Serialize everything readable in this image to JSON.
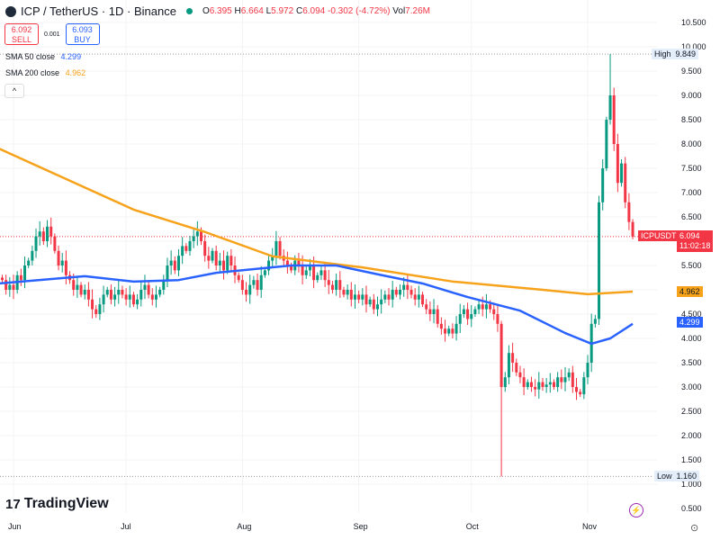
{
  "header": {
    "symbol": "ICP / TetherUS · 1D · Binance",
    "o_label": "O",
    "o": "6.395",
    "h_label": "H",
    "h": "6.664",
    "l_label": "L",
    "l": "5.972",
    "c_label": "C",
    "c": "6.094",
    "change": "-0.302 (-4.72%)",
    "vol_label": "Vol",
    "vol": "7.26M"
  },
  "trade": {
    "sell_price": "6.092",
    "sell_label": "SELL",
    "spread": "0.001",
    "buy_price": "6.093",
    "buy_label": "BUY"
  },
  "indicators": [
    {
      "label": "SMA 50 close",
      "value": "4.299",
      "color": "#2962ff"
    },
    {
      "label": "SMA 200 close",
      "value": "4.962",
      "color": "#f7a21b"
    }
  ],
  "collapse_icon": "chevron-up-icon",
  "branding": "TradingView",
  "tags": {
    "high_label": "High",
    "high": "9.849",
    "low_label": "Low",
    "low": "1.160",
    "symbol_tag": "ICPUSDT",
    "last": "6.094",
    "countdown": "11:02:18",
    "sma50": "4.299",
    "sma200": "4.962"
  },
  "colors": {
    "up": "#089981",
    "down": "#f23645",
    "sma50": "#2962ff",
    "sma200": "#f7a21b"
  },
  "chart_data": {
    "type": "candlestick",
    "y_ticks": [
      "10.500",
      "10.000",
      "9.500",
      "9.000",
      "8.500",
      "8.000",
      "7.500",
      "7.000",
      "6.500",
      "5.500",
      "4.500",
      "4.000",
      "3.500",
      "3.000",
      "2.500",
      "2.000",
      "1.500",
      "1.000",
      "0.500"
    ],
    "ylim": [
      0.5,
      10.5
    ],
    "x_ticks": [
      {
        "label": "Jun",
        "date": "2024-06-01"
      },
      {
        "label": "Jul",
        "date": "2024-07-01"
      },
      {
        "label": "Aug",
        "date": "2024-08-01"
      },
      {
        "label": "Sep",
        "date": "2024-09-01"
      },
      {
        "label": "Oct",
        "date": "2024-10-01"
      },
      {
        "label": "Nov",
        "date": "2024-11-01"
      }
    ],
    "candles_from": "2024-05-29",
    "closes": [
      5.2,
      5.0,
      5.1,
      5.0,
      5.3,
      5.2,
      5.5,
      5.6,
      5.8,
      6.1,
      6.2,
      6.0,
      6.3,
      6.1,
      5.8,
      5.5,
      5.6,
      5.3,
      5.2,
      5.0,
      5.1,
      4.9,
      5.0,
      4.8,
      4.6,
      4.5,
      4.7,
      4.9,
      5.0,
      4.8,
      4.9,
      5.0,
      4.9,
      4.8,
      4.9,
      4.7,
      4.8,
      5.0,
      5.1,
      4.9,
      4.8,
      4.9,
      5.0,
      5.2,
      5.5,
      5.6,
      5.4,
      5.7,
      5.9,
      5.8,
      6.0,
      6.1,
      6.2,
      6.0,
      5.7,
      5.6,
      5.8,
      5.5,
      5.6,
      5.4,
      5.7,
      5.5,
      5.3,
      5.2,
      5.0,
      4.9,
      5.1,
      5.2,
      5.0,
      5.3,
      5.4,
      5.6,
      5.7,
      6.0,
      5.7,
      5.6,
      5.5,
      5.4,
      5.6,
      5.5,
      5.3,
      5.4,
      5.5,
      5.2,
      5.3,
      5.4,
      5.2,
      5.1,
      5.0,
      5.2,
      5.0,
      4.9,
      5.0,
      4.8,
      4.9,
      4.8,
      4.9,
      4.7,
      4.8,
      4.6,
      4.7,
      4.8,
      4.9,
      4.8,
      5.0,
      4.9,
      5.0,
      5.1,
      5.0,
      4.9,
      4.8,
      4.9,
      4.7,
      4.6,
      4.5,
      4.6,
      4.3,
      4.2,
      4.1,
      4.2,
      4.1,
      4.3,
      4.5,
      4.6,
      4.4,
      4.5,
      4.6,
      4.7,
      4.6,
      4.7,
      4.6,
      4.5,
      4.3,
      3.0,
      3.2,
      3.7,
      3.5,
      3.3,
      3.2,
      3.0,
      3.1,
      3.0,
      2.95,
      3.1,
      3.0,
      3.05,
      3.1,
      3.0,
      3.2,
      3.1,
      3.2,
      3.3,
      3.0,
      2.9,
      2.85,
      3.2,
      3.5,
      4.3,
      4.4,
      6.8,
      7.5,
      8.5,
      9.0,
      8.0,
      7.2,
      7.6,
      6.8,
      6.395,
      6.094
    ],
    "extreme_low": {
      "date": "2024-10-09",
      "value": 1.16
    },
    "extreme_high": {
      "date": "2024-11-07",
      "value": 9.849
    },
    "sma50": [
      [
        "2024-05-28",
        5.13
      ],
      [
        "2024-06-20",
        5.28
      ],
      [
        "2024-07-03",
        5.17
      ],
      [
        "2024-07-15",
        5.2
      ],
      [
        "2024-07-25",
        5.35
      ],
      [
        "2024-08-14",
        5.5
      ],
      [
        "2024-08-26",
        5.5
      ],
      [
        "2024-09-06",
        5.32
      ],
      [
        "2024-09-18",
        5.13
      ],
      [
        "2024-09-30",
        4.85
      ],
      [
        "2024-10-14",
        4.57
      ],
      [
        "2024-10-26",
        4.11
      ],
      [
        "2024-11-02",
        3.89
      ],
      [
        "2024-11-07",
        4.0
      ],
      [
        "2024-11-13",
        4.299
      ]
    ],
    "sma200": [
      [
        "2024-05-28",
        7.91
      ],
      [
        "2024-07-03",
        6.65
      ],
      [
        "2024-07-22",
        6.19
      ],
      [
        "2024-08-09",
        5.69
      ],
      [
        "2024-09-02",
        5.46
      ],
      [
        "2024-09-26",
        5.17
      ],
      [
        "2024-10-20",
        5.0
      ],
      [
        "2024-11-01",
        4.91
      ],
      [
        "2024-11-13",
        4.962
      ]
    ]
  }
}
